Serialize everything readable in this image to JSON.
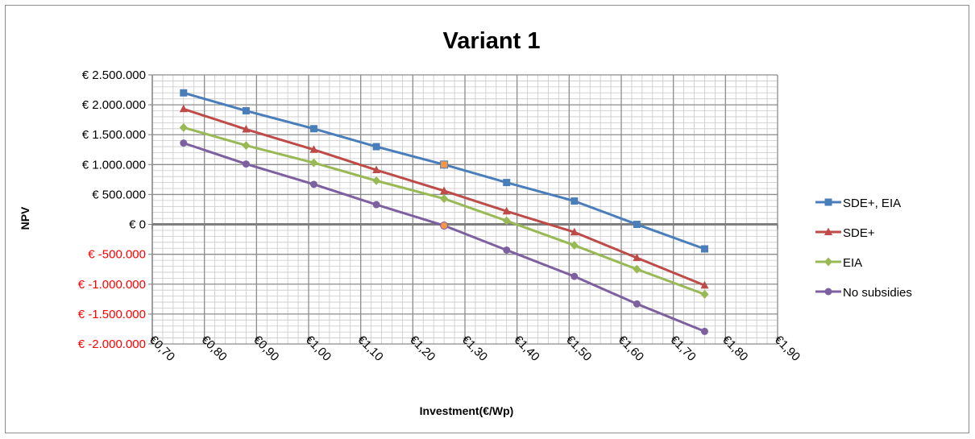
{
  "chart_data": {
    "type": "line",
    "title": "Variant 1",
    "xlabel": "Investment(€/Wp)",
    "ylabel": "NPV",
    "xlim": [
      0.7,
      1.9
    ],
    "ylim": [
      -2000000,
      2500000
    ],
    "x_ticks": [
      0.7,
      0.8,
      0.9,
      1.0,
      1.1,
      1.2,
      1.3,
      1.4,
      1.5,
      1.6,
      1.7,
      1.8,
      1.9
    ],
    "x_tick_labels": [
      "€0,70",
      "€0,80",
      "€0,90",
      "€1,00",
      "€1,10",
      "€1,20",
      "€1,30",
      "€1,40",
      "€1,50",
      "€1,60",
      "€1,70",
      "€1,80",
      "€1,90"
    ],
    "y_ticks": [
      2500000,
      2000000,
      1500000,
      1000000,
      500000,
      0,
      -500000,
      -1000000,
      -1500000,
      -2000000
    ],
    "y_tick_labels": [
      "€ 2.500.000",
      "€ 2.000.000",
      "€ 1.500.000",
      "€ 1.000.000",
      "€ 500.000",
      "€ 0",
      "€ -500.000",
      "€ -1.000.000",
      "€ -1.500.000",
      "€ -2.000.000"
    ],
    "grid": true,
    "legend_position": "right",
    "x": [
      0.76,
      0.88,
      1.01,
      1.13,
      1.26,
      1.38,
      1.51,
      1.63,
      1.76
    ],
    "series": [
      {
        "name": "SDE+, EIA",
        "color": "#4a7ebb",
        "marker": "square",
        "values": [
          2200000,
          1900000,
          1600000,
          1300000,
          1000000,
          700000,
          390000,
          0,
          -410000
        ]
      },
      {
        "name": "SDE+",
        "color": "#be4b48",
        "marker": "triangle",
        "values": [
          1930000,
          1590000,
          1250000,
          910000,
          560000,
          220000,
          -130000,
          -560000,
          -1020000
        ]
      },
      {
        "name": "EIA",
        "color": "#98b954",
        "marker": "diamond",
        "values": [
          1620000,
          1320000,
          1030000,
          730000,
          430000,
          60000,
          -350000,
          -750000,
          -1170000
        ]
      },
      {
        "name": "No subsidies",
        "color": "#7d60a0",
        "marker": "circle",
        "values": [
          1360000,
          1010000,
          670000,
          330000,
          -20000,
          -430000,
          -870000,
          -1330000,
          -1790000
        ]
      }
    ],
    "highlight_color": "#f79646",
    "negative_label_color": "#ff0000",
    "axis_label_color": "#000000"
  }
}
